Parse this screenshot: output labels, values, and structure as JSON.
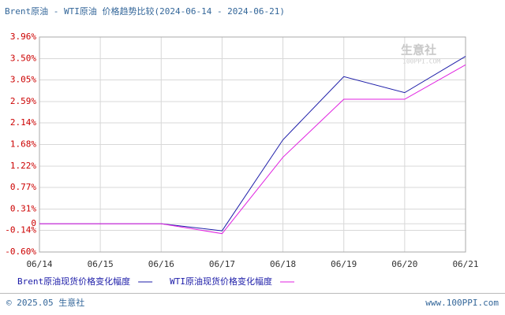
{
  "chart_data": {
    "type": "line",
    "title": "Brent原油 - WTI原油 价格趋势比较(2024-06-14 - 2024-06-21)",
    "categories": [
      "06/14",
      "06/15",
      "06/16",
      "06/17",
      "06/18",
      "06/19",
      "06/20",
      "06/21"
    ],
    "series": [
      {
        "name": "Brent原油现货价格变化幅度",
        "color": "#1c1ca8",
        "values": [
          0,
          0,
          0,
          -0.15,
          1.78,
          3.12,
          2.78,
          3.55
        ]
      },
      {
        "name": "WTI原油现货价格变化幅度",
        "color": "#e020e0",
        "values": [
          0,
          0,
          0,
          -0.21,
          1.41,
          2.64,
          2.64,
          3.37
        ]
      }
    ],
    "ylim": [
      -0.6,
      3.96
    ],
    "yticks": [
      {
        "value": -0.6,
        "label": "-0.60%"
      },
      {
        "value": -0.14,
        "label": "-0.14%"
      },
      0,
      {
        "value": 0.31,
        "label": "0.31%"
      },
      {
        "value": 0.77,
        "label": "0.77%"
      },
      {
        "value": 1.22,
        "label": "1.22%"
      },
      {
        "value": 1.68,
        "label": "1.68%"
      },
      {
        "value": 2.14,
        "label": "2.14%"
      },
      {
        "value": 2.59,
        "label": "2.59%"
      },
      {
        "value": 3.05,
        "label": "3.05%"
      },
      {
        "value": 3.5,
        "label": "3.50%"
      },
      {
        "value": 3.96,
        "label": "3.96%"
      }
    ],
    "grid": true,
    "watermark": {
      "brand": "生意社",
      "site": "100PPI.COM"
    },
    "footer": {
      "copyright": "© 2025.05 生意社",
      "url": "www.100PPI.com"
    }
  }
}
